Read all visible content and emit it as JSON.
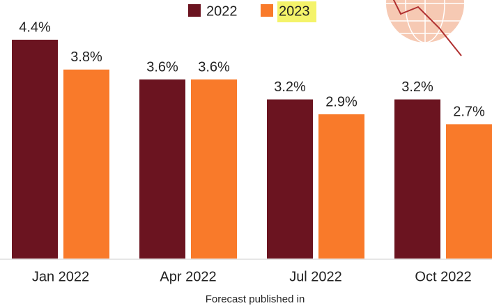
{
  "chart_data": {
    "type": "bar",
    "x_label": "Forecast published in",
    "categories": [
      "Jan 2022",
      "Apr 2022",
      "Jul 2022",
      "Oct 2022"
    ],
    "series": [
      {
        "name": "2022",
        "color": "#6b1420",
        "values": [
          4.4,
          3.6,
          3.2,
          3.2
        ],
        "value_labels": [
          "4.4%",
          "3.6%",
          "3.2%",
          "3.2%"
        ]
      },
      {
        "name": "2023",
        "color": "#f97a2a",
        "values": [
          3.8,
          3.6,
          2.9,
          2.7
        ],
        "value_labels": [
          "3.8%",
          "3.6%",
          "2.9%",
          "2.7%"
        ]
      }
    ]
  }
}
